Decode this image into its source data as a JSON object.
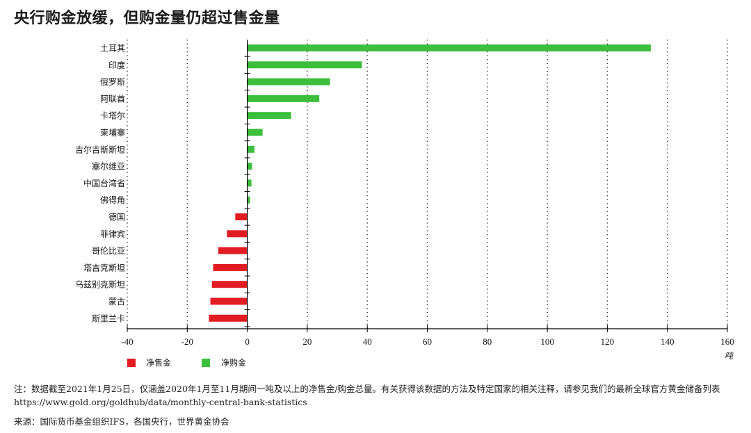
{
  "title": "央行购金放缓，但购金量仍超过售金量",
  "chart_data": {
    "type": "bar",
    "orientation": "horizontal",
    "categories": [
      "土耳其",
      "印度",
      "俄罗斯",
      "阿联酋",
      "卡塔尔",
      "柬埔寨",
      "吉尔吉斯斯坦",
      "塞尔维亚",
      "中国台湾省",
      "佛得角",
      "德国",
      "菲律宾",
      "哥伦比亚",
      "塔吉克斯坦",
      "乌兹别克斯坦",
      "蒙古",
      "斯里兰卡"
    ],
    "values": [
      134.5,
      38.2,
      27.6,
      24.0,
      14.6,
      5.1,
      2.4,
      1.6,
      1.4,
      0.9,
      -4.0,
      -6.8,
      -9.7,
      -11.4,
      -11.8,
      -12.3,
      -12.8
    ],
    "series": [
      {
        "name": "净售金",
        "color": "#e31b23"
      },
      {
        "name": "净购金",
        "color": "#3cbf3c"
      }
    ],
    "xlim": [
      -40,
      160
    ],
    "xticks": [
      "-40",
      "-20",
      "0",
      "20",
      "40",
      "60",
      "80",
      "100",
      "120",
      "140",
      "160"
    ],
    "xtick_values": [
      -40,
      -20,
      0,
      20,
      40,
      60,
      80,
      100,
      120,
      140,
      160
    ],
    "xlabel": "吨",
    "grid": "vertical-dotted",
    "legend_position": "bottom-left"
  },
  "footnote": "注：数据截至2021年1月25日，仅涵盖2020年1月至11月期间一吨及以上的净售金/购金总量。有关获得该数据的方法及特定国家的相关注释，请参见我们的最新全球官方黄金储备列表 https://www.gold.org/goldhub/data/monthly-central-bank-statistics",
  "source": "来源：国际货币基金组织IFS，各国央行，世界黄金协会"
}
